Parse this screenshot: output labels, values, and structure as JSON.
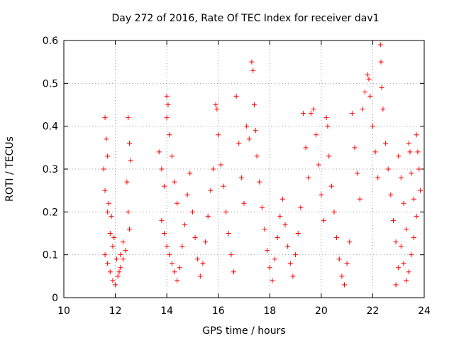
{
  "chart_data": {
    "type": "scatter",
    "title": "Day 272 of 2016, Rate Of TEC Index for receiver dav1",
    "xlabel": "GPS time / hours",
    "ylabel": "ROTI / TECUs",
    "xlim": [
      10,
      24
    ],
    "ylim": [
      0,
      0.6
    ],
    "xticks": [
      "10",
      "12",
      "14",
      "16",
      "18",
      "20",
      "22",
      "24"
    ],
    "yticks": [
      "0",
      "0.1",
      "0.2",
      "0.3",
      "0.4",
      "0.5",
      "0.6"
    ],
    "grid": true,
    "marker": "+",
    "color": "#ff0000",
    "series": [
      {
        "values": [
          [
            11.6,
            0.42
          ],
          [
            11.65,
            0.37
          ],
          [
            11.7,
            0.33
          ],
          [
            11.55,
            0.3
          ],
          [
            11.6,
            0.25
          ],
          [
            11.7,
            0.2
          ],
          [
            11.8,
            0.15
          ],
          [
            11.9,
            0.12
          ],
          [
            11.6,
            0.1
          ],
          [
            11.7,
            0.08
          ],
          [
            11.8,
            0.06
          ],
          [
            11.9,
            0.04
          ],
          [
            12.0,
            0.03
          ],
          [
            12.1,
            0.05
          ],
          [
            12.2,
            0.07
          ],
          [
            12.3,
            0.09
          ],
          [
            12.4,
            0.11
          ],
          [
            12.5,
            0.42
          ],
          [
            12.55,
            0.36
          ],
          [
            12.6,
            0.32
          ],
          [
            12.45,
            0.27
          ],
          [
            12.5,
            0.2
          ],
          [
            12.55,
            0.16
          ],
          [
            12.3,
            0.13
          ],
          [
            12.2,
            0.1
          ],
          [
            11.75,
            0.22
          ],
          [
            11.85,
            0.19
          ],
          [
            11.95,
            0.14
          ],
          [
            12.05,
            0.09
          ],
          [
            12.15,
            0.06
          ],
          [
            13.7,
            0.34
          ],
          [
            13.8,
            0.3
          ],
          [
            13.9,
            0.26
          ],
          [
            14.0,
            0.47
          ],
          [
            14.05,
            0.45
          ],
          [
            14.0,
            0.42
          ],
          [
            14.1,
            0.38
          ],
          [
            14.2,
            0.33
          ],
          [
            14.3,
            0.27
          ],
          [
            14.4,
            0.22
          ],
          [
            13.8,
            0.18
          ],
          [
            13.9,
            0.15
          ],
          [
            14.0,
            0.12
          ],
          [
            14.1,
            0.1
          ],
          [
            14.2,
            0.08
          ],
          [
            14.3,
            0.06
          ],
          [
            14.4,
            0.04
          ],
          [
            14.5,
            0.07
          ],
          [
            14.6,
            0.12
          ],
          [
            14.7,
            0.17
          ],
          [
            14.8,
            0.24
          ],
          [
            14.9,
            0.29
          ],
          [
            15.0,
            0.2
          ],
          [
            15.1,
            0.14
          ],
          [
            15.2,
            0.09
          ],
          [
            15.3,
            0.05
          ],
          [
            15.4,
            0.08
          ],
          [
            15.5,
            0.13
          ],
          [
            15.6,
            0.19
          ],
          [
            15.7,
            0.25
          ],
          [
            15.8,
            0.3
          ],
          [
            15.9,
            0.45
          ],
          [
            15.95,
            0.44
          ],
          [
            16.0,
            0.38
          ],
          [
            16.1,
            0.31
          ],
          [
            16.2,
            0.26
          ],
          [
            16.3,
            0.2
          ],
          [
            16.4,
            0.15
          ],
          [
            16.5,
            0.1
          ],
          [
            16.6,
            0.06
          ],
          [
            16.7,
            0.47
          ],
          [
            16.8,
            0.36
          ],
          [
            16.9,
            0.28
          ],
          [
            17.0,
            0.22
          ],
          [
            17.1,
            0.4
          ],
          [
            17.2,
            0.37
          ],
          [
            17.3,
            0.55
          ],
          [
            17.35,
            0.53
          ],
          [
            17.4,
            0.45
          ],
          [
            17.45,
            0.39
          ],
          [
            17.5,
            0.33
          ],
          [
            17.6,
            0.27
          ],
          [
            17.7,
            0.21
          ],
          [
            17.8,
            0.16
          ],
          [
            17.9,
            0.11
          ],
          [
            18.0,
            0.07
          ],
          [
            18.1,
            0.04
          ],
          [
            18.2,
            0.09
          ],
          [
            18.3,
            0.14
          ],
          [
            18.4,
            0.19
          ],
          [
            18.5,
            0.23
          ],
          [
            18.6,
            0.17
          ],
          [
            18.7,
            0.12
          ],
          [
            18.8,
            0.08
          ],
          [
            18.9,
            0.05
          ],
          [
            19.0,
            0.1
          ],
          [
            19.1,
            0.15
          ],
          [
            19.2,
            0.21
          ],
          [
            19.3,
            0.43
          ],
          [
            19.4,
            0.35
          ],
          [
            19.5,
            0.28
          ],
          [
            19.6,
            0.43
          ],
          [
            19.7,
            0.44
          ],
          [
            19.8,
            0.38
          ],
          [
            19.9,
            0.31
          ],
          [
            20.0,
            0.24
          ],
          [
            20.1,
            0.18
          ],
          [
            20.2,
            0.42
          ],
          [
            20.25,
            0.4
          ],
          [
            20.3,
            0.33
          ],
          [
            20.4,
            0.26
          ],
          [
            20.5,
            0.2
          ],
          [
            20.6,
            0.14
          ],
          [
            20.7,
            0.09
          ],
          [
            20.8,
            0.05
          ],
          [
            20.9,
            0.03
          ],
          [
            21.0,
            0.08
          ],
          [
            21.1,
            0.13
          ],
          [
            21.2,
            0.43
          ],
          [
            21.3,
            0.35
          ],
          [
            21.4,
            0.29
          ],
          [
            21.5,
            0.23
          ],
          [
            21.6,
            0.44
          ],
          [
            21.7,
            0.48
          ],
          [
            21.8,
            0.52
          ],
          [
            21.85,
            0.51
          ],
          [
            21.9,
            0.47
          ],
          [
            22.0,
            0.4
          ],
          [
            22.1,
            0.34
          ],
          [
            22.2,
            0.28
          ],
          [
            22.3,
            0.59
          ],
          [
            22.32,
            0.55
          ],
          [
            22.35,
            0.49
          ],
          [
            22.4,
            0.44
          ],
          [
            22.5,
            0.36
          ],
          [
            22.6,
            0.3
          ],
          [
            22.7,
            0.24
          ],
          [
            22.8,
            0.18
          ],
          [
            22.9,
            0.13
          ],
          [
            23.0,
            0.33
          ],
          [
            23.1,
            0.28
          ],
          [
            23.2,
            0.22
          ],
          [
            23.3,
            0.16
          ],
          [
            23.4,
            0.36
          ],
          [
            23.45,
            0.34
          ],
          [
            23.5,
            0.29
          ],
          [
            23.6,
            0.23
          ],
          [
            23.7,
            0.38
          ],
          [
            23.75,
            0.34
          ],
          [
            23.8,
            0.3
          ],
          [
            23.85,
            0.25
          ],
          [
            23.7,
            0.19
          ],
          [
            23.6,
            0.14
          ],
          [
            23.5,
            0.1
          ],
          [
            23.4,
            0.06
          ],
          [
            23.3,
            0.04
          ],
          [
            23.2,
            0.08
          ],
          [
            23.1,
            0.12
          ],
          [
            23.0,
            0.07
          ],
          [
            22.9,
            0.03
          ]
        ]
      }
    ]
  }
}
